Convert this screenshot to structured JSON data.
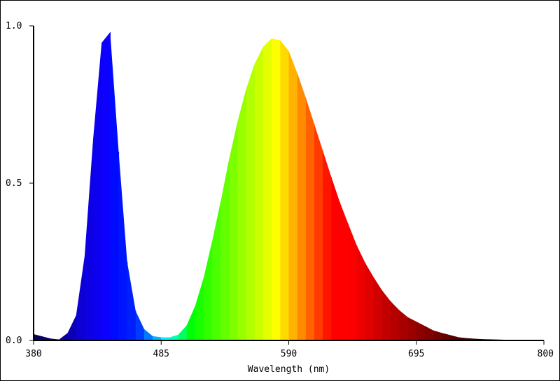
{
  "chart_data": {
    "type": "area",
    "title": "",
    "xlabel": "Wavelength (nm)",
    "ylabel": "",
    "xlim": [
      380,
      800
    ],
    "ylim": [
      0,
      1.0
    ],
    "grid": false,
    "legend": "none",
    "x_ticks": [
      380,
      485,
      590,
      695,
      800
    ],
    "x_tick_labels": [
      "380",
      "485",
      "590",
      "695",
      "800"
    ],
    "y_ticks": [
      0.0,
      0.5,
      1.0
    ],
    "y_tick_labels": [
      "0.0",
      "0.5",
      "1.0"
    ],
    "fill": "wavelength-spectrum-colors",
    "series": [
      {
        "x": [
          380,
          390,
          400,
          410,
          415,
          420,
          425,
          430,
          435,
          440,
          443,
          447,
          450,
          453,
          457,
          460,
          465,
          470,
          475,
          480,
          485,
          490,
          495,
          500,
          505,
          510,
          515,
          520,
          525,
          530,
          535,
          540,
          545,
          550,
          555,
          560,
          565,
          570,
          575,
          580,
          585,
          590,
          595,
          600,
          605,
          610,
          615,
          620,
          625,
          630,
          635,
          640,
          645,
          650,
          655,
          660,
          665,
          670,
          675,
          680,
          685,
          690,
          695,
          700,
          705,
          710,
          715,
          720,
          725,
          730,
          735,
          740,
          745,
          750,
          760,
          770,
          780,
          790,
          800
        ],
        "values": [
          0.02,
          0.01,
          0.0,
          0.03,
          0.08,
          0.18,
          0.4,
          0.7,
          0.93,
          1.01,
          0.98,
          0.82,
          0.6,
          0.42,
          0.25,
          0.15,
          0.08,
          0.04,
          0.02,
          0.01,
          0.01,
          0.01,
          0.01,
          0.02,
          0.04,
          0.08,
          0.13,
          0.2,
          0.28,
          0.37,
          0.46,
          0.56,
          0.65,
          0.73,
          0.8,
          0.86,
          0.91,
          0.94,
          0.96,
          0.96,
          0.95,
          0.92,
          0.87,
          0.82,
          0.76,
          0.7,
          0.64,
          0.58,
          0.52,
          0.46,
          0.41,
          0.36,
          0.31,
          0.27,
          0.23,
          0.2,
          0.17,
          0.14,
          0.12,
          0.1,
          0.08,
          0.07,
          0.06,
          0.05,
          0.04,
          0.03,
          0.025,
          0.02,
          0.015,
          0.01,
          0.008,
          0.006,
          0.005,
          0.004,
          0.003,
          0.002,
          0.001,
          0.001,
          0.0
        ],
        "note": ""
      }
    ]
  }
}
